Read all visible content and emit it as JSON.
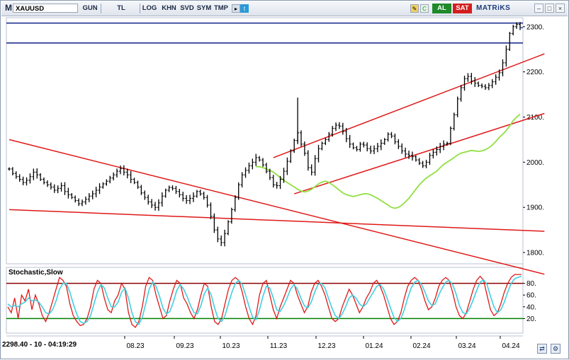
{
  "toolbar": {
    "app_mark": "M",
    "symbol": "XAUUSD",
    "buttons": [
      "GUN",
      "TL",
      "LOG",
      "KHN",
      "SVD",
      "SYM",
      "TMP"
    ],
    "buy_label": "AL",
    "sell_label": "SAT",
    "brand": "MATRiKS",
    "minimize": "–",
    "maximize": "□",
    "close": "×"
  },
  "status": {
    "readout": "2298.40 - 10 - 04:19:29"
  },
  "colors": {
    "price_bars": "#000000",
    "moving_average": "#90e040",
    "trend_lines": "#e01818",
    "horizontal_levels": "#10208a",
    "stoch_k": "#e01818",
    "stoch_d": "#40d0e0",
    "overbought_line": "#8b0000",
    "oversold_line": "#008000"
  },
  "chart_data": [
    {
      "type": "ohlc",
      "series_label": "",
      "x_ticks": [
        "08.23",
        "09.23",
        "10.23",
        "11.23",
        "12.23",
        "01.24",
        "02.24",
        "03.24",
        "04.24"
      ],
      "y_ticks": [
        "2300.",
        "2200.",
        "2100.",
        "2000.",
        "1900.",
        "1800."
      ],
      "ylim": [
        1775,
        2320
      ],
      "grid": false,
      "close_series": [
        1985,
        1975,
        1968,
        1962,
        1955,
        1960,
        1968,
        1978,
        1972,
        1962,
        1955,
        1950,
        1945,
        1938,
        1942,
        1948,
        1935,
        1928,
        1922,
        1915,
        1908,
        1912,
        1918,
        1925,
        1930,
        1938,
        1945,
        1952,
        1958,
        1965,
        1972,
        1980,
        1986,
        1978,
        1972,
        1962,
        1955,
        1945,
        1932,
        1922,
        1912,
        1905,
        1900,
        1910,
        1925,
        1938,
        1944,
        1942,
        1935,
        1928,
        1920,
        1915,
        1920,
        1925,
        1935,
        1930,
        1922,
        1905,
        1880,
        1850,
        1830,
        1822,
        1842,
        1868,
        1895,
        1922,
        1950,
        1972,
        1982,
        1992,
        2000,
        2010,
        2005,
        1994,
        1980,
        1966,
        1950,
        1948,
        1962,
        1980,
        2002,
        2025,
        2048,
        2065,
        2040,
        2020,
        1988,
        1978,
        2008,
        2030,
        2042,
        2050,
        2062,
        2075,
        2082,
        2080,
        2068,
        2052,
        2040,
        2032,
        2028,
        2040,
        2038,
        2030,
        2025,
        2030,
        2035,
        2042,
        2050,
        2062,
        2058,
        2045,
        2035,
        2025,
        2018,
        2015,
        2012,
        2005,
        1998,
        1992,
        2000,
        2015,
        2022,
        2028,
        2035,
        2040,
        2042,
        2075,
        2105,
        2140,
        2165,
        2185,
        2190,
        2180,
        2175,
        2170,
        2168,
        2165,
        2170,
        2178,
        2188,
        2198,
        2220,
        2250,
        2285,
        2300,
        2305,
        2298
      ],
      "horizontal_levels": [
        2308,
        2264
      ],
      "trend_lines": [
        {
          "from_date_index": 0,
          "from_value": 2050,
          "to_date_index": 154,
          "to_value": 1752
        },
        {
          "from_date_index": 0,
          "from_value": 1895,
          "to_date_index": 154,
          "to_value": 1847
        },
        {
          "from_date_index": 76,
          "from_value": 2010,
          "to_date_index": 154,
          "to_value": 2240
        },
        {
          "from_date_index": 82,
          "from_value": 1930,
          "to_date_index": 154,
          "to_value": 2108
        }
      ],
      "moving_average": [
        1990,
        1990,
        1988,
        1985,
        1982,
        1978,
        1972,
        1966,
        1960,
        1955,
        1950,
        1945,
        1940,
        1936,
        1934,
        1936,
        1940,
        1946,
        1952,
        1956,
        1958,
        1955,
        1950,
        1944,
        1938,
        1932,
        1928,
        1926,
        1924,
        1926,
        1928,
        1930,
        1930,
        1928,
        1924,
        1920,
        1915,
        1910,
        1905,
        1900,
        1898,
        1900,
        1905,
        1912,
        1920,
        1930,
        1940,
        1950,
        1958,
        1965,
        1970,
        1975,
        1980,
        1988,
        1995,
        2000,
        2005,
        2010,
        2016,
        2020,
        2022,
        2024,
        2026,
        2025,
        2024,
        2025,
        2028,
        2032,
        2038,
        2046,
        2055,
        2062,
        2070,
        2080,
        2092,
        2100,
        2106
      ]
    },
    {
      "type": "line",
      "title": "Stochastic,Slow",
      "y_ticks": [
        "80.",
        "60.",
        "40.",
        "20."
      ],
      "ylim": [
        0,
        100
      ],
      "levels": [
        80,
        20
      ],
      "series": [
        {
          "name": "",
          "values": [
            40,
            30,
            55,
            20,
            60,
            50,
            70,
            35,
            60,
            45,
            25,
            15,
            30,
            50,
            70,
            90,
            85,
            75,
            45,
            25,
            15,
            8,
            10,
            20,
            40,
            70,
            85,
            80,
            55,
            35,
            30,
            50,
            60,
            80,
            70,
            30,
            10,
            5,
            15,
            40,
            75,
            90,
            85,
            60,
            40,
            20,
            25,
            50,
            70,
            85,
            80,
            55,
            45,
            30,
            20,
            35,
            60,
            80,
            75,
            40,
            15,
            10,
            20,
            45,
            70,
            85,
            90,
            85,
            65,
            40,
            20,
            10,
            25,
            60,
            80,
            85,
            60,
            35,
            20,
            40,
            55,
            70,
            85,
            80,
            60,
            45,
            30,
            40,
            65,
            80,
            85,
            75,
            60,
            40,
            20,
            15,
            20,
            40,
            55,
            70,
            60,
            45,
            30,
            40,
            55,
            65,
            80,
            85,
            75,
            60,
            40,
            20,
            10,
            15,
            30,
            55,
            75,
            85,
            90,
            85,
            70,
            50,
            35,
            40,
            55,
            75,
            85,
            90,
            85,
            65,
            40,
            25,
            20,
            30,
            50,
            70,
            85,
            92,
            85,
            60,
            35,
            25,
            30,
            45,
            65,
            80,
            90,
            95,
            95,
            95
          ]
        },
        {
          "name": "",
          "values": [
            45,
            40,
            42,
            40,
            45,
            48,
            55,
            50,
            52,
            48,
            40,
            30,
            28,
            35,
            50,
            70,
            80,
            80,
            65,
            45,
            28,
            15,
            12,
            15,
            25,
            45,
            65,
            78,
            72,
            55,
            40,
            40,
            48,
            65,
            72,
            55,
            30,
            15,
            10,
            22,
            45,
            70,
            82,
            75,
            58,
            38,
            28,
            32,
            48,
            68,
            78,
            70,
            58,
            42,
            30,
            28,
            42,
            62,
            72,
            60,
            38,
            20,
            15,
            25,
            45,
            65,
            80,
            85,
            78,
            60,
            40,
            22,
            18,
            35,
            58,
            75,
            72,
            55,
            35,
            32,
            42,
            55,
            70,
            78,
            70,
            55,
            42,
            38,
            48,
            65,
            78,
            80,
            72,
            55,
            38,
            25,
            20,
            28,
            40,
            55,
            60,
            55,
            45,
            40,
            45,
            55,
            65,
            75,
            78,
            70,
            55,
            38,
            22,
            15,
            20,
            35,
            55,
            72,
            82,
            85,
            78,
            65,
            50,
            42,
            45,
            60,
            72,
            82,
            85,
            78,
            62,
            42,
            30,
            28,
            38,
            52,
            68,
            82,
            86,
            78,
            58,
            40,
            30,
            35,
            48,
            65,
            80,
            88,
            90,
            92
          ]
        }
      ]
    }
  ]
}
